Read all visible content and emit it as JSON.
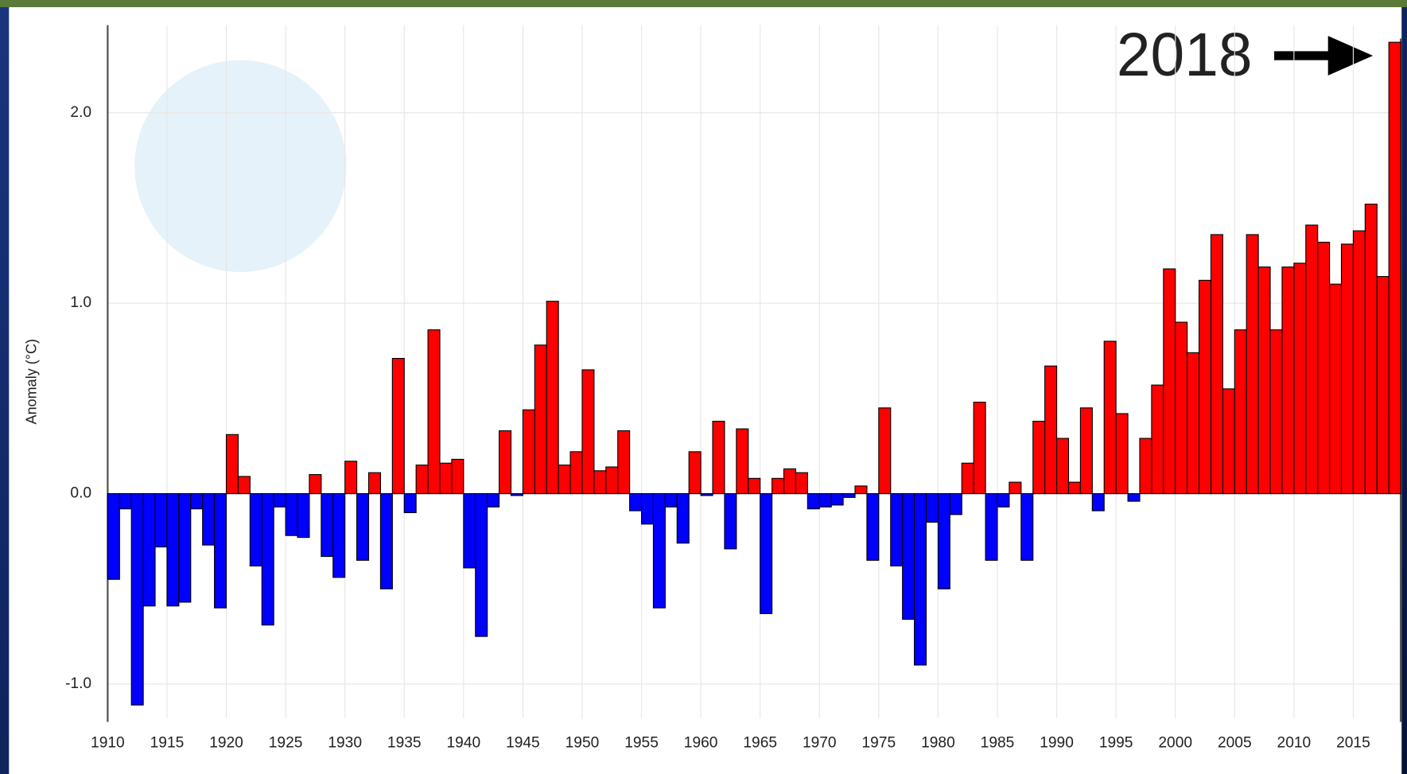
{
  "chart_data": {
    "type": "bar",
    "y_label": "Anomaly (°C)",
    "annotation": "2018",
    "x": [
      1910,
      1911,
      1912,
      1913,
      1914,
      1915,
      1916,
      1917,
      1918,
      1919,
      1920,
      1921,
      1922,
      1923,
      1924,
      1925,
      1926,
      1927,
      1928,
      1929,
      1930,
      1931,
      1932,
      1933,
      1934,
      1935,
      1936,
      1937,
      1938,
      1939,
      1940,
      1941,
      1942,
      1943,
      1944,
      1945,
      1946,
      1947,
      1948,
      1949,
      1950,
      1951,
      1952,
      1953,
      1954,
      1955,
      1956,
      1957,
      1958,
      1959,
      1960,
      1961,
      1962,
      1963,
      1964,
      1965,
      1966,
      1967,
      1968,
      1969,
      1970,
      1971,
      1972,
      1973,
      1974,
      1975,
      1976,
      1977,
      1978,
      1979,
      1980,
      1981,
      1982,
      1983,
      1984,
      1985,
      1986,
      1987,
      1988,
      1989,
      1990,
      1991,
      1992,
      1993,
      1994,
      1995,
      1996,
      1997,
      1998,
      1999,
      2000,
      2001,
      2002,
      2003,
      2004,
      2005,
      2006,
      2007,
      2008,
      2009,
      2010,
      2011,
      2012,
      2013,
      2014,
      2015,
      2016,
      2017,
      2018
    ],
    "values": [
      -0.45,
      -0.08,
      -1.11,
      -0.59,
      -0.28,
      -0.59,
      -0.57,
      -0.08,
      -0.27,
      -0.6,
      0.31,
      0.09,
      -0.38,
      -0.69,
      -0.07,
      -0.22,
      -0.23,
      0.1,
      -0.33,
      -0.44,
      0.17,
      -0.35,
      0.11,
      -0.5,
      0.71,
      -0.1,
      0.15,
      0.86,
      0.16,
      0.18,
      -0.39,
      -0.75,
      -0.07,
      0.33,
      -0.01,
      0.44,
      0.78,
      1.01,
      0.15,
      0.22,
      0.65,
      0.12,
      0.14,
      0.33,
      -0.09,
      -0.16,
      -0.6,
      -0.07,
      -0.26,
      0.22,
      -0.01,
      0.38,
      -0.29,
      0.34,
      0.08,
      -0.63,
      0.08,
      0.13,
      0.11,
      -0.08,
      -0.07,
      -0.06,
      -0.02,
      0.04,
      -0.35,
      0.45,
      -0.38,
      -0.66,
      -0.9,
      -0.15,
      -0.5,
      -0.11,
      0.16,
      0.48,
      -0.35,
      -0.07,
      0.06,
      -0.35,
      0.38,
      0.67,
      0.29,
      0.06,
      0.45,
      -0.09,
      0.8,
      0.42,
      -0.04,
      0.29,
      0.57,
      1.18,
      0.9,
      0.74,
      1.12,
      1.36,
      0.55,
      0.86,
      1.36,
      1.19,
      0.86,
      1.19,
      1.21,
      1.41,
      1.32,
      1.1,
      1.31,
      1.38,
      1.52,
      1.14,
      2.37
    ],
    "color_positive": "#ff0000",
    "color_negative": "#0000ff",
    "xlim": [
      1910,
      2019
    ],
    "xticks": [
      1910,
      1915,
      1920,
      1925,
      1930,
      1935,
      1940,
      1945,
      1950,
      1955,
      1960,
      1965,
      1970,
      1975,
      1980,
      1985,
      1990,
      1995,
      2000,
      2005,
      2010,
      2015
    ],
    "ylim": [
      -1.18,
      2.46
    ],
    "yticks": [
      {
        "value": -1,
        "label": "-1.0"
      },
      {
        "value": 0,
        "label": "0.0"
      },
      {
        "value": 1,
        "label": "1.0"
      },
      {
        "value": 2,
        "label": "2.0"
      }
    ],
    "grid": true
  }
}
